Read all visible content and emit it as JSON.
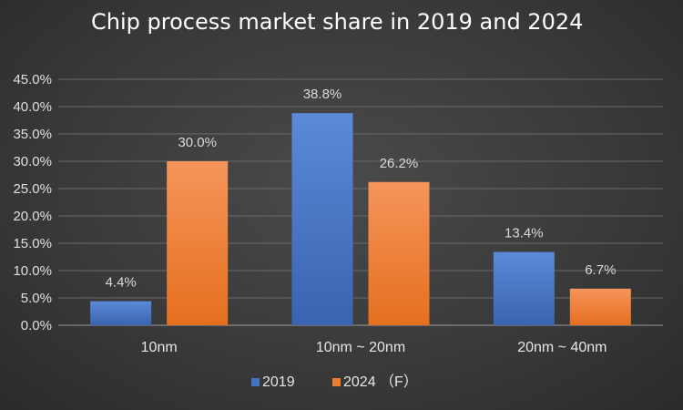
{
  "chart_data": {
    "type": "bar",
    "title": "Chip process market share in 2019 and 2024",
    "categories": [
      "10nm",
      "10nm ~ 20nm",
      "20nm ~ 40nm"
    ],
    "series": [
      {
        "name": "2019",
        "values": [
          4.4,
          38.8,
          13.4
        ],
        "labels": [
          "4.4%",
          "38.8%",
          "13.4%"
        ],
        "color": "#4472c4"
      },
      {
        "name": "2024 （F）",
        "values": [
          30.0,
          26.2,
          6.7
        ],
        "labels": [
          "30.0%",
          "26.2%",
          "6.7%"
        ],
        "color": "#ed7d31"
      }
    ],
    "ylim": [
      0,
      45
    ],
    "yticks": [
      "0.0%",
      "5.0%",
      "10.0%",
      "15.0%",
      "20.0%",
      "25.0%",
      "30.0%",
      "35.0%",
      "40.0%",
      "45.0%"
    ],
    "grid": true,
    "legend_position": "bottom"
  }
}
